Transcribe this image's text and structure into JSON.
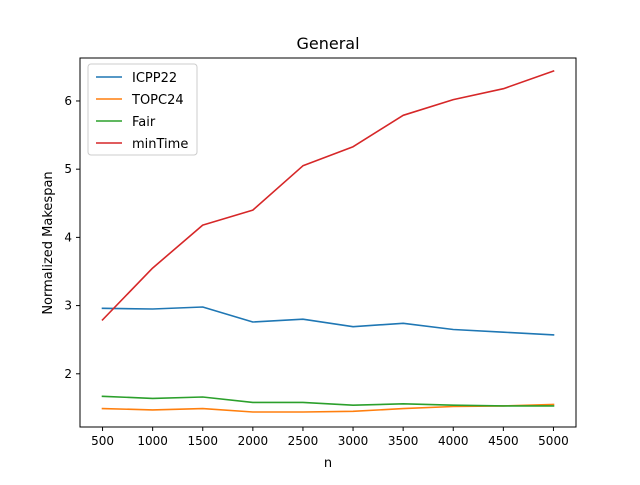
{
  "chart_data": {
    "type": "line",
    "title": "General",
    "xlabel": "n",
    "ylabel": "Normalized Makespan",
    "x": [
      500,
      1000,
      1500,
      2000,
      2500,
      3000,
      3500,
      4000,
      4500,
      5000
    ],
    "xticks": [
      500,
      1000,
      1500,
      2000,
      2500,
      3000,
      3500,
      4000,
      4500,
      5000
    ],
    "yticks": [
      2,
      3,
      4,
      5,
      6
    ],
    "xlim": [
      275,
      5225
    ],
    "ylim": [
      1.22,
      6.63
    ],
    "grid": false,
    "legend_position": "top-left",
    "series": [
      {
        "name": "ICPP22",
        "color": "#1f77b4",
        "values": [
          2.96,
          2.95,
          2.98,
          2.76,
          2.8,
          2.69,
          2.74,
          2.65,
          2.61,
          2.57
        ]
      },
      {
        "name": "TOPC24",
        "color": "#ff7f0e",
        "values": [
          1.49,
          1.47,
          1.49,
          1.44,
          1.44,
          1.45,
          1.49,
          1.52,
          1.53,
          1.55
        ]
      },
      {
        "name": "Fair",
        "color": "#2ca02c",
        "values": [
          1.67,
          1.64,
          1.66,
          1.58,
          1.58,
          1.54,
          1.56,
          1.54,
          1.53,
          1.53
        ]
      },
      {
        "name": "minTime",
        "color": "#d62728",
        "values": [
          2.79,
          3.55,
          4.18,
          4.4,
          5.05,
          5.33,
          5.79,
          6.02,
          6.18,
          6.44
        ]
      }
    ]
  }
}
